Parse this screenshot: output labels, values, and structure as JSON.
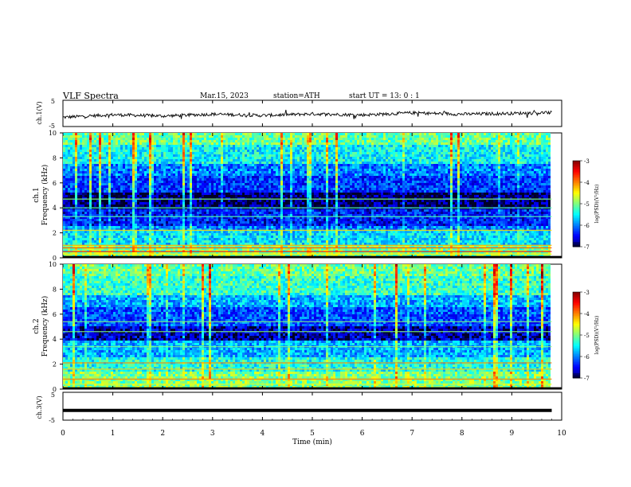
{
  "header": {
    "title": "VLF  Spectra",
    "date": "Mar.15, 2023",
    "station": "station=ATH",
    "start": "start  UT  =   13: 0  : 1"
  },
  "colorbar": {
    "label": "log(PSD)(V²/Hz)",
    "ticks": [
      "-3",
      "-4",
      "-5",
      "-6",
      "-7"
    ],
    "range": [
      -7,
      -3
    ]
  },
  "chart_data": [
    {
      "type": "line",
      "panel": "ch1-waveform",
      "ylabel": "ch.1(V)",
      "ylim": [
        -5,
        5
      ],
      "yticks": [
        "5",
        "-5"
      ],
      "xlim": [
        0,
        10
      ],
      "description_values": {
        "x": [
          0,
          1,
          2,
          3,
          4,
          5,
          6,
          7,
          8,
          9,
          9.8
        ],
        "y": [
          -1.5,
          -0.5,
          -1.0,
          -0.3,
          -0.8,
          -0.2,
          -0.6,
          0.2,
          -0.3,
          0.0,
          0.3
        ]
      }
    },
    {
      "type": "heatmap",
      "panel": "ch1-spectrogram",
      "ylabel": "Frequency (kHz)",
      "channel_label": "ch.1",
      "ylim": [
        0,
        10
      ],
      "yticks": [
        "0",
        "2",
        "4",
        "6",
        "8",
        "10"
      ],
      "xlim": [
        0,
        9.8
      ],
      "bands": [
        {
          "from": 9.0,
          "to": 10.0,
          "level": -5.1
        },
        {
          "from": 7.5,
          "to": 9.0,
          "level": -5.5
        },
        {
          "from": 6.5,
          "to": 7.5,
          "level": -6.0
        },
        {
          "from": 5.2,
          "to": 6.5,
          "level": -6.3
        },
        {
          "from": 3.8,
          "to": 5.2,
          "level": -6.9
        },
        {
          "from": 2.6,
          "to": 3.8,
          "level": -6.4
        },
        {
          "from": 2.1,
          "to": 2.6,
          "level": -6.0
        },
        {
          "from": 1.0,
          "to": 2.1,
          "level": -5.6
        },
        {
          "from": 0.0,
          "to": 1.0,
          "level": -5.0
        }
      ],
      "lines": [
        {
          "f": 4.7,
          "level": -5.0
        },
        {
          "f": 4.0,
          "level": -5.2
        },
        {
          "f": 3.3,
          "level": -5.2
        },
        {
          "f": 2.2,
          "level": -4.4
        },
        {
          "f": 1.0,
          "level": -4.2
        },
        {
          "f": 0.8,
          "level": -3.8
        },
        {
          "f": 0.5,
          "level": -3.5
        },
        {
          "f": 0.3,
          "level": -4.5
        }
      ]
    },
    {
      "type": "heatmap",
      "panel": "ch2-spectrogram",
      "ylabel": "Frequency (kHz)",
      "channel_label": "ch.2",
      "ylim": [
        0,
        10
      ],
      "yticks": [
        "0",
        "2",
        "4",
        "6",
        "8",
        "10"
      ],
      "xlim": [
        0,
        9.8
      ],
      "bands": [
        {
          "from": 9.0,
          "to": 10.0,
          "level": -5.1
        },
        {
          "from": 7.5,
          "to": 9.0,
          "level": -5.3
        },
        {
          "from": 6.5,
          "to": 7.5,
          "level": -5.8
        },
        {
          "from": 5.0,
          "to": 6.5,
          "level": -6.2
        },
        {
          "from": 3.8,
          "to": 5.0,
          "level": -6.7
        },
        {
          "from": 2.6,
          "to": 3.8,
          "level": -5.8
        },
        {
          "from": 1.4,
          "to": 2.6,
          "level": -5.4
        },
        {
          "from": 0.0,
          "to": 1.4,
          "level": -5.0
        }
      ],
      "lines": [
        {
          "f": 5.4,
          "level": -5.0
        },
        {
          "f": 4.6,
          "level": -5.0
        },
        {
          "f": 3.4,
          "level": -5.0
        },
        {
          "f": 2.1,
          "level": -4.0
        },
        {
          "f": 1.6,
          "level": -4.3
        },
        {
          "f": 0.8,
          "level": -4.0
        },
        {
          "f": 0.4,
          "level": -4.6
        }
      ]
    },
    {
      "type": "line",
      "panel": "ch3-waveform",
      "ylabel": "ch.3(V)",
      "ylim": [
        -5,
        5
      ],
      "yticks": [
        "5",
        "-5"
      ],
      "xlim": [
        0,
        10
      ],
      "description_values": {
        "x": [
          0,
          9.8
        ],
        "y": [
          -1.5,
          -1.5
        ]
      }
    }
  ],
  "xaxis": {
    "label": "Time  (min)",
    "ticks": [
      "0",
      "1",
      "2",
      "3",
      "4",
      "5",
      "6",
      "7",
      "8",
      "9",
      "10"
    ],
    "range": [
      0,
      10
    ]
  }
}
